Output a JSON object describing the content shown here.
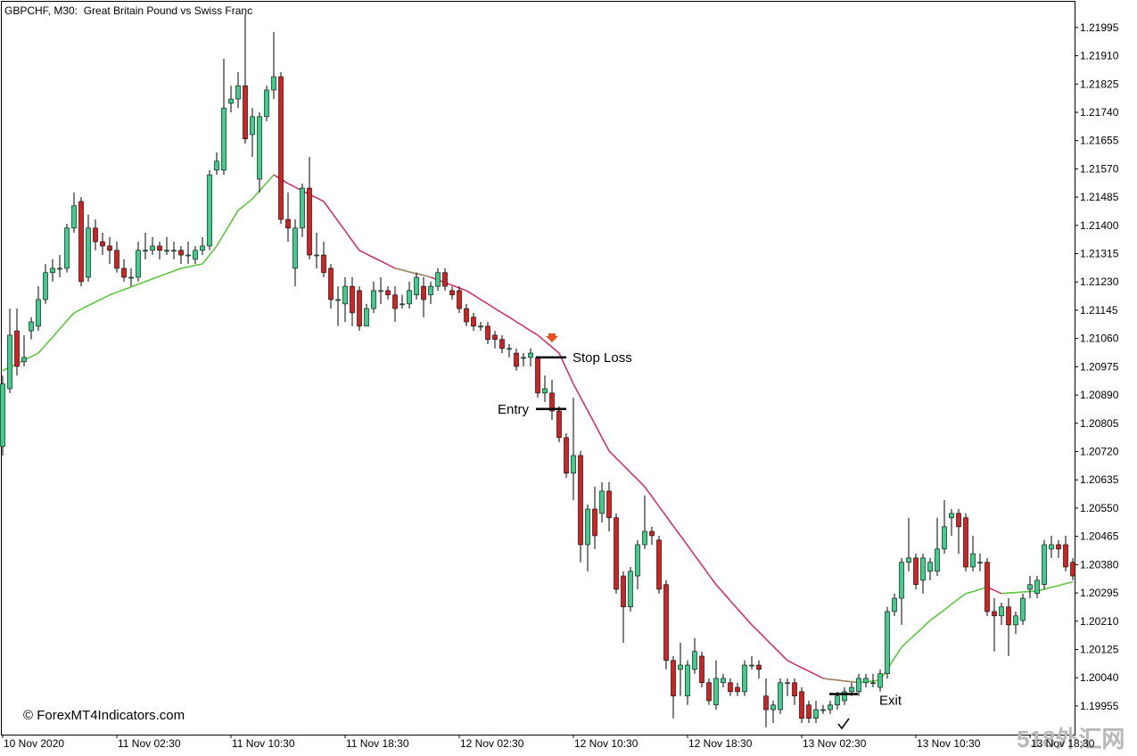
{
  "chart_data": {
    "type": "candlestick",
    "title": "GBPCHF, M30:  Great Britain Pound vs Swiss Franc",
    "watermark": "© ForexMT4Indicators.com",
    "site_mark": "518外汇网",
    "up_color": "#3dcf8a",
    "down_color": "#d42020",
    "ylim": [
      1.19869,
      1.22075
    ],
    "yticks": [
      1.19955,
      {
        "value": 1.2004,
        "label": "1.20040"
      },
      1.20125,
      {
        "value": 1.2021,
        "label": "1.20210"
      },
      1.20295,
      {
        "value": 1.2038,
        "label": "1.20380"
      },
      1.20465,
      {
        "value": 1.2055,
        "label": "1.20550"
      },
      1.20635,
      {
        "value": 1.2072,
        "label": "1.20720"
      },
      1.20805,
      {
        "value": 1.2089,
        "label": "1.20890"
      },
      1.20975,
      {
        "value": 1.2106,
        "label": "1.21060"
      },
      1.21145,
      {
        "value": 1.2123,
        "label": "1.21230"
      },
      1.21315,
      {
        "value": 1.214,
        "label": "1.21400"
      },
      1.21485,
      {
        "value": 1.2157,
        "label": "1.21570"
      },
      1.21655,
      {
        "value": 1.2174,
        "label": "1.21740"
      },
      1.21825,
      {
        "value": 1.2191,
        "label": "1.21910"
      },
      1.21995
    ],
    "categories": [
      "10 Nov 2020",
      null,
      null,
      null,
      null,
      null,
      null,
      null,
      null,
      null,
      null,
      null,
      null,
      null,
      null,
      null,
      "11 Nov 02:30",
      null,
      null,
      null,
      null,
      null,
      null,
      null,
      null,
      null,
      null,
      null,
      null,
      null,
      null,
      null,
      "11 Nov 10:30",
      null,
      null,
      null,
      null,
      null,
      null,
      null,
      null,
      null,
      null,
      null,
      null,
      null,
      null,
      null,
      "11 Nov 18:30",
      null,
      null,
      null,
      null,
      null,
      null,
      null,
      null,
      null,
      null,
      null,
      null,
      null,
      null,
      null,
      "12 Nov 02:30",
      null,
      null,
      null,
      null,
      null,
      null,
      null,
      null,
      null,
      null,
      null,
      null,
      null,
      null,
      null,
      "12 Nov 10:30",
      null,
      null,
      null,
      null,
      null,
      null,
      null,
      null,
      null,
      null,
      null,
      null,
      null,
      null,
      null,
      "12 Nov 18:30",
      null,
      null,
      null,
      null,
      null,
      null,
      null,
      null,
      null,
      null,
      null,
      null,
      null,
      null,
      null,
      "13 Nov 02:30",
      null,
      null,
      null,
      null,
      null,
      null,
      null,
      null,
      null,
      null,
      null,
      null,
      null,
      null,
      null,
      "13 Nov 10:30",
      null,
      null,
      null,
      null,
      null,
      null,
      null,
      null,
      null,
      null,
      null,
      null,
      null,
      null,
      null,
      "13 Nov 18:30",
      null,
      null,
      null,
      null,
      null,
      null
    ],
    "open": [
      1.20735,
      1.20909,
      1.21083,
      1.2099,
      1.21083,
      1.21097,
      1.21177,
      1.21258,
      1.21271,
      1.21271,
      1.21392,
      1.21472,
      1.21244,
      1.21392,
      1.21351,
      1.21338,
      1.21325,
      1.21271,
      1.21244,
      1.21244,
      1.21325,
      1.21325,
      1.21338,
      1.21325,
      1.21325,
      1.21325,
      1.21311,
      1.21298,
      1.21325,
      1.21338,
      1.21566,
      1.21566,
      1.21767,
      1.2178,
      1.2182,
      1.21673,
      1.21539,
      1.21727,
      1.21807,
      1.21847,
      1.21418,
      1.21271,
      1.21392,
      1.21512,
      1.21311,
      1.21311,
      1.21271,
      1.21177,
      1.21164,
      1.21217,
      1.21204,
      1.21097,
      1.2115,
      1.21204,
      1.21204,
      1.21191,
      1.21164,
      1.21164,
      1.21191,
      1.21217,
      1.21191,
      1.21217,
      1.21258,
      1.21204,
      1.21204,
      1.2115,
      1.21124,
      1.21097,
      1.21097,
      1.2107,
      1.21057,
      1.2103,
      1.21016,
      1.21003,
      1.21003,
      1.21003,
      1.20896,
      1.20896,
      1.20842,
      1.20762,
      1.20655,
      1.20708,
      1.2044,
      1.20547,
      1.20534,
      1.20601,
      1.20521,
      1.20346,
      1.20253,
      1.20346,
      1.2044,
      1.2048,
      1.20454,
      1.2032,
      1.20092,
      1.20065,
      1.19985,
      1.20065,
      1.20105,
      1.20025,
      1.19958,
      1.20025,
      1.20025,
      1.20011,
      1.19998,
      1.20078,
      1.20078,
      1.19985,
      1.19944,
      1.19944,
      1.20025,
      1.20025,
      1.19998,
      1.19958,
      1.19918,
      1.19944,
      1.19944,
      1.19958,
      1.19971,
      1.19998,
      1.19998,
      1.20025,
      1.20025,
      1.20011,
      1.20052,
      1.20239,
      1.20279,
      1.20387,
      1.204,
      1.20333,
      1.2036,
      1.2036,
      1.20427,
      1.20521,
      1.20534,
      1.20521,
      1.20373,
      1.20387,
      1.20387,
      1.20239,
      1.20226,
      1.20253,
      1.20199,
      1.20212,
      1.20306,
      1.20293,
      1.2032,
      1.20427,
      1.2044,
      1.2044,
      1.20387
    ],
    "high": [
      1.20949,
      1.2115,
      1.2115,
      1.2107,
      1.21124,
      1.21217,
      1.21284,
      1.21298,
      1.21311,
      1.21405,
      1.21499,
      1.21485,
      1.21432,
      1.21418,
      1.21378,
      1.21365,
      1.21351,
      1.21298,
      1.21271,
      1.21351,
      1.21378,
      1.21365,
      1.21351,
      1.21365,
      1.21351,
      1.21338,
      1.21351,
      1.21338,
      1.21365,
      1.21566,
      1.21619,
      1.21901,
      1.2182,
      1.21861,
      1.22035,
      1.21753,
      1.2174,
      1.2182,
      1.21981,
      1.21861,
      1.21499,
      1.21418,
      1.21526,
      1.21606,
      1.21378,
      1.21351,
      1.21284,
      1.21217,
      1.21244,
      1.21244,
      1.21217,
      1.21164,
      1.21231,
      1.21244,
      1.21217,
      1.21217,
      1.21191,
      1.21231,
      1.21258,
      1.21244,
      1.21231,
      1.21271,
      1.21271,
      1.21217,
      1.21217,
      1.21164,
      1.21137,
      1.2111,
      1.2111,
      1.21083,
      1.2107,
      1.21043,
      1.2103,
      1.21016,
      1.2103,
      1.21003,
      1.20949,
      1.20936,
      1.20856,
      1.20775,
      1.20882,
      1.20722,
      1.20561,
      1.20614,
      1.20628,
      1.20628,
      1.20534,
      1.2036,
      1.20373,
      1.20454,
      1.20588,
      1.20494,
      1.20467,
      1.20333,
      1.20105,
      1.20145,
      1.20092,
      1.20159,
      1.20119,
      1.20038,
      1.20092,
      1.20052,
      1.20038,
      1.20025,
      1.20092,
      1.20105,
      1.20092,
      1.20038,
      1.19971,
      1.20038,
      1.20038,
      1.20038,
      1.20011,
      1.19971,
      1.19971,
      1.19958,
      1.19971,
      1.19998,
      1.20011,
      1.20025,
      1.20052,
      1.20052,
      1.20052,
      1.20065,
      1.20253,
      1.20293,
      1.204,
      1.20521,
      1.20413,
      1.20413,
      1.204,
      1.20521,
      1.20574,
      1.20547,
      1.20547,
      1.20534,
      1.20467,
      1.20413,
      1.204,
      1.20279,
      1.20266,
      1.20279,
      1.20239,
      1.20293,
      1.20346,
      1.20346,
      1.20454,
      1.20467,
      1.20454,
      1.20467,
      1.204
    ],
    "low": [
      1.20708,
      1.20896,
      1.20949,
      1.20976,
      1.21057,
      1.21083,
      1.21164,
      1.21231,
      1.21244,
      1.21258,
      1.21378,
      1.21217,
      1.21231,
      1.21325,
      1.21311,
      1.21284,
      1.21258,
      1.21231,
      1.21217,
      1.21231,
      1.21298,
      1.21311,
      1.21298,
      1.21311,
      1.21298,
      1.21284,
      1.21284,
      1.21284,
      1.21311,
      1.21325,
      1.21552,
      1.21552,
      1.2174,
      1.21753,
      1.21646,
      1.21606,
      1.21499,
      1.21713,
      1.2178,
      1.21405,
      1.21351,
      1.21217,
      1.21365,
      1.21298,
      1.21271,
      1.21244,
      1.2115,
      1.21097,
      1.2111,
      1.21097,
      1.21083,
      1.21097,
      1.21137,
      1.21164,
      1.21177,
      1.2111,
      1.2115,
      1.2115,
      1.21177,
      1.21124,
      1.21164,
      1.21204,
      1.21204,
      1.21177,
      1.21137,
      1.21097,
      1.21083,
      1.21083,
      1.21043,
      1.2103,
      1.21016,
      1.21003,
      1.20963,
      1.20976,
      1.20976,
      1.20882,
      1.20869,
      1.20815,
      1.20748,
      1.20641,
      1.20574,
      1.20387,
      1.2036,
      1.20427,
      1.20507,
      1.2048,
      1.20293,
      1.20145,
      1.20239,
      1.20306,
      1.20427,
      1.2044,
      1.20293,
      1.20065,
      1.19918,
      1.19985,
      1.19958,
      1.20052,
      1.20011,
      1.19958,
      1.19944,
      1.20011,
      1.19985,
      1.19985,
      1.19985,
      1.20065,
      1.20038,
      1.19891,
      1.19904,
      1.19931,
      1.19985,
      1.19958,
      1.19904,
      1.19904,
      1.19904,
      1.19931,
      1.19931,
      1.19944,
      1.19958,
      1.19985,
      1.19985,
      1.20011,
      1.20011,
      1.19998,
      1.20038,
      1.20226,
      1.20199,
      1.2036,
      1.20306,
      1.20293,
      1.20333,
      1.20346,
      1.20413,
      1.20467,
      1.20413,
      1.2036,
      1.2036,
      1.2036,
      1.20226,
      1.20119,
      1.20199,
      1.20105,
      1.20172,
      1.20199,
      1.20279,
      1.20279,
      1.20306,
      1.204,
      1.204,
      1.2036,
      1.20333
    ],
    "close": [
      1.20923,
      1.2107,
      1.20976,
      1.21003,
      1.2111,
      1.21177,
      1.21258,
      1.21271,
      1.21271,
      1.21392,
      1.21459,
      1.21231,
      1.21392,
      1.21351,
      1.21338,
      1.21325,
      1.21271,
      1.21244,
      1.21244,
      1.21325,
      1.21325,
      1.21338,
      1.21325,
      1.21325,
      1.21325,
      1.21311,
      1.21311,
      1.21325,
      1.21338,
      1.21552,
      1.21593,
      1.21753,
      1.2178,
      1.2182,
      1.2166,
      1.21727,
      1.21727,
      1.21807,
      1.21847,
      1.21418,
      1.21392,
      1.21392,
      1.21512,
      1.21311,
      1.21311,
      1.21258,
      1.21177,
      1.21177,
      1.21217,
      1.21137,
      1.21097,
      1.2115,
      1.21204,
      1.21204,
      1.21191,
      1.2115,
      1.21164,
      1.21204,
      1.21244,
      1.21177,
      1.21217,
      1.21258,
      1.21217,
      1.21191,
      1.2115,
      1.2111,
      1.21097,
      1.21097,
      1.21057,
      1.21057,
      1.2103,
      1.2103,
      1.20976,
      1.21003,
      1.21016,
      1.20896,
      1.20909,
      1.20842,
      1.20762,
      1.20655,
      1.20708,
      1.2044,
      1.20547,
      1.20467,
      1.20601,
      1.20521,
      1.20306,
      1.20253,
      1.2036,
      1.2044,
      1.2048,
      1.20467,
      1.20306,
      1.20092,
      1.19985,
      1.20078,
      1.20078,
      1.20119,
      1.20025,
      1.19971,
      1.20038,
      1.20038,
      1.19998,
      1.19998,
      1.20078,
      1.20078,
      1.20065,
      1.19944,
      1.19958,
      1.20025,
      1.20025,
      1.19985,
      1.19918,
      1.19918,
      1.19944,
      1.19944,
      1.19958,
      1.19985,
      1.19998,
      1.20011,
      1.20038,
      1.20038,
      1.20025,
      1.20052,
      1.20239,
      1.20279,
      1.20387,
      1.204,
      1.2032,
      1.204,
      1.20387,
      1.20427,
      1.20494,
      1.20534,
      1.20494,
      1.20373,
      1.20413,
      1.20387,
      1.20239,
      1.20226,
      1.20253,
      1.20199,
      1.20226,
      1.20279,
      1.2032,
      1.20333,
      1.2044,
      1.2044,
      1.20427,
      1.20373,
      1.20346
    ],
    "ma": {
      "colors": {
        "up": "#5ec63c",
        "flat": "#a08060",
        "down": "#d0306e"
      },
      "values": [
        1.20963,
        1.20974,
        1.20984,
        1.20995,
        1.21005,
        1.21016,
        1.2104,
        1.21064,
        1.21089,
        1.21113,
        1.21137,
        1.21148,
        1.21159,
        1.2117,
        1.2118,
        1.21191,
        1.21199,
        1.21207,
        1.21215,
        1.21223,
        1.21231,
        1.21239,
        1.21247,
        1.21255,
        1.21263,
        1.21271,
        1.21275,
        1.2128,
        1.21284,
        1.21311,
        1.21338,
        1.21374,
        1.21409,
        1.21445,
        1.21462,
        1.2148,
        1.21504,
        1.21528,
        1.21552,
        1.21539,
        1.21526,
        1.21515,
        1.21504,
        1.21493,
        1.21483,
        1.21472,
        1.21443,
        1.21413,
        1.21384,
        1.21354,
        1.21325,
        1.21314,
        1.21303,
        1.21293,
        1.21282,
        1.21271,
        1.21266,
        1.2126,
        1.21255,
        1.2125,
        1.21244,
        1.21236,
        1.21228,
        1.2122,
        1.21212,
        1.21204,
        1.21191,
        1.21177,
        1.21164,
        1.2115,
        1.21137,
        1.21124,
        1.2111,
        1.21097,
        1.21083,
        1.2107,
        1.21052,
        1.21034,
        1.21016,
        1.2097,
        1.20923,
        1.20883,
        1.20843,
        1.20803,
        1.20762,
        1.20722,
        1.207,
        1.20679,
        1.20657,
        1.20636,
        1.20614,
        1.20585,
        1.20555,
        1.20526,
        1.20496,
        1.20467,
        1.20438,
        1.20408,
        1.20379,
        1.20349,
        1.2032,
        1.20296,
        1.20271,
        1.20247,
        1.20223,
        1.20199,
        1.20178,
        1.20156,
        1.20135,
        1.20113,
        1.20092,
        1.20081,
        1.2007,
        1.2006,
        1.20049,
        1.20038,
        1.20035,
        1.20033,
        1.2003,
        1.20028,
        1.20025,
        1.20028,
        1.2003,
        1.20033,
        1.20066,
        1.20099,
        1.20132,
        1.20152,
        1.20172,
        1.20192,
        1.20212,
        1.20228,
        1.20244,
        1.20261,
        1.20277,
        1.20293,
        1.20299,
        1.20306,
        1.20312,
        1.20303,
        1.20293,
        1.20295,
        1.20296,
        1.20298,
        1.20299,
        1.20301,
        1.20306,
        1.20312,
        1.20317,
        1.20323,
        1.20328
      ]
    },
    "levels": [
      {
        "label": "Stop Loss",
        "value": 1.21003
      },
      {
        "label": "Entry",
        "value": 1.20848
      },
      {
        "label": "Exit",
        "value": 1.19991
      }
    ]
  }
}
